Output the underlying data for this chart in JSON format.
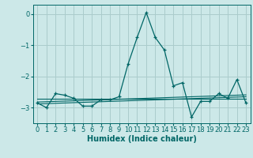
{
  "xlabel": "Humidex (Indice chaleur)",
  "background_color": "#cce8e8",
  "grid_color": "#aacccc",
  "line_color": "#006666",
  "x_values": [
    0,
    1,
    2,
    3,
    4,
    5,
    6,
    7,
    8,
    9,
    10,
    11,
    12,
    13,
    14,
    15,
    16,
    17,
    18,
    19,
    20,
    21,
    22,
    23
  ],
  "y_main": [
    -2.85,
    -3.0,
    -2.55,
    -2.6,
    -2.7,
    -2.95,
    -2.95,
    -2.75,
    -2.75,
    -2.65,
    -1.6,
    -0.75,
    0.05,
    -0.75,
    -1.15,
    -2.3,
    -2.2,
    -3.3,
    -2.8,
    -2.8,
    -2.55,
    -2.7,
    -2.1,
    -2.85
  ],
  "y_line1": [
    -2.72,
    -2.72,
    -2.72,
    -2.72,
    -2.72,
    -2.72,
    -2.72,
    -2.72,
    -2.72,
    -2.72,
    -2.72,
    -2.72,
    -2.72,
    -2.72,
    -2.72,
    -2.72,
    -2.72,
    -2.72,
    -2.72,
    -2.72,
    -2.72,
    -2.72,
    -2.72,
    -2.72
  ],
  "y_line2": [
    -2.82,
    -2.81,
    -2.8,
    -2.79,
    -2.78,
    -2.77,
    -2.76,
    -2.75,
    -2.74,
    -2.73,
    -2.72,
    -2.71,
    -2.7,
    -2.69,
    -2.68,
    -2.67,
    -2.66,
    -2.65,
    -2.64,
    -2.63,
    -2.62,
    -2.61,
    -2.6,
    -2.59
  ],
  "y_line3": [
    -2.88,
    -2.87,
    -2.86,
    -2.85,
    -2.84,
    -2.83,
    -2.82,
    -2.81,
    -2.8,
    -2.79,
    -2.78,
    -2.77,
    -2.76,
    -2.75,
    -2.74,
    -2.73,
    -2.72,
    -2.71,
    -2.7,
    -2.69,
    -2.68,
    -2.67,
    -2.66,
    -2.65
  ],
  "ylim": [
    -3.5,
    0.3
  ],
  "yticks": [
    0,
    -1,
    -2,
    -3
  ],
  "xlim": [
    -0.5,
    23.5
  ],
  "xticks": [
    0,
    1,
    2,
    3,
    4,
    5,
    6,
    7,
    8,
    9,
    10,
    11,
    12,
    13,
    14,
    15,
    16,
    17,
    18,
    19,
    20,
    21,
    22,
    23
  ],
  "tick_fontsize": 6,
  "xlabel_fontsize": 7
}
